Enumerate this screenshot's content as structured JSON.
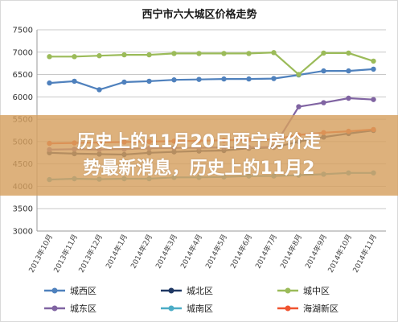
{
  "chart_data": {
    "type": "line",
    "title": "西宁市六大城区价格走势",
    "ylim": [
      3000,
      7500
    ],
    "yticks": [
      3000,
      3500,
      4000,
      4500,
      5000,
      5500,
      6000,
      6500,
      7000,
      7500
    ],
    "categories": [
      "2013年10月",
      "2013年11月",
      "2013年12月",
      "2014年1月",
      "2014年2月",
      "2014年3月",
      "2014年4月",
      "2014年5月",
      "2014年6月",
      "2014年7月",
      "2014年8月",
      "2014年9月",
      "2014年10月",
      "2014年11月"
    ],
    "grid": true,
    "legend_position": "bottom",
    "series": [
      {
        "name": "城西区",
        "color": "#4f81bd",
        "values": [
          6310,
          6350,
          6160,
          6330,
          6350,
          6380,
          6390,
          6400,
          6400,
          6410,
          6490,
          6580,
          6580,
          6620
        ]
      },
      {
        "name": "城北区",
        "color": "#1f3864",
        "values": [
          4750,
          4730,
          4720,
          4710,
          4750,
          4770,
          4790,
          4800,
          4850,
          4870,
          5000,
          5100,
          5180,
          5250
        ]
      },
      {
        "name": "城中区",
        "color": "#9bbb59",
        "values": [
          6900,
          6900,
          6920,
          6940,
          6940,
          6970,
          6970,
          6970,
          6970,
          6990,
          6500,
          6980,
          6980,
          6800
        ]
      },
      {
        "name": "城东区",
        "color": "#8064a2",
        "values": [
          4820,
          4830,
          4820,
          4830,
          4850,
          4860,
          4860,
          4870,
          4870,
          4880,
          5780,
          5870,
          5970,
          5940
        ]
      },
      {
        "name": "城南区",
        "color": "#4bacc6",
        "values": [
          4150,
          4170,
          4160,
          4170,
          4170,
          4200,
          4200,
          4210,
          4230,
          4230,
          4250,
          4270,
          4300,
          4300
        ]
      },
      {
        "name": "海湖新区",
        "color": "#f0532f",
        "values": [
          4960,
          4970,
          4980,
          4990,
          5000,
          5010,
          5020,
          5030,
          5040,
          5050,
          5150,
          5200,
          5230,
          5270
        ]
      }
    ]
  },
  "overlay": {
    "line1": "历史上的11月20日西宁房价走",
    "line2": "势最新消息，历史上的11月2"
  }
}
